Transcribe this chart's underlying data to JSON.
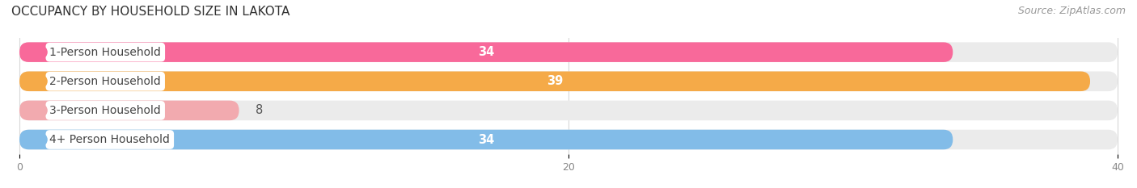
{
  "title": "OCCUPANCY BY HOUSEHOLD SIZE IN LAKOTA",
  "source": "Source: ZipAtlas.com",
  "categories": [
    "1-Person Household",
    "2-Person Household",
    "3-Person Household",
    "4+ Person Household"
  ],
  "values": [
    34,
    39,
    8,
    34
  ],
  "bar_colors": [
    "#f8699a",
    "#f5aa48",
    "#f2aaaf",
    "#82bce8"
  ],
  "bar_bg_color": "#ebebeb",
  "xlim_max": 40,
  "xticks": [
    0,
    20,
    40
  ],
  "title_fontsize": 11,
  "source_fontsize": 9,
  "label_fontsize": 10,
  "value_fontsize": 10.5,
  "background_color": "#ffffff",
  "tick_color": "#888888",
  "grid_color": "#d8d8d8",
  "label_text_color": "#444444",
  "value_text_color": "#ffffff"
}
